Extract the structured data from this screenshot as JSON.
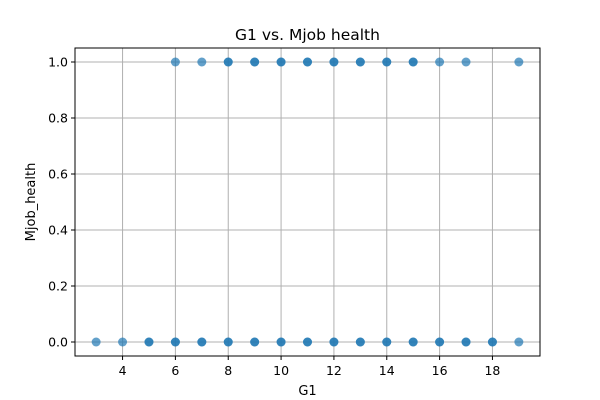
{
  "chart_data": {
    "type": "scatter",
    "title": "G1 vs. Mjob health",
    "xlabel": "G1",
    "ylabel": "Mjob_health",
    "xlim": [
      2.2,
      19.8
    ],
    "ylim": [
      -0.05,
      1.05
    ],
    "x_ticks": [
      4,
      6,
      8,
      10,
      12,
      14,
      16,
      18
    ],
    "y_ticks": [
      0.0,
      0.2,
      0.4,
      0.6,
      0.8,
      1.0
    ],
    "x_tick_labels": [
      "4",
      "6",
      "8",
      "10",
      "12",
      "14",
      "16",
      "18"
    ],
    "y_tick_labels": [
      "0.0",
      "0.2",
      "0.4",
      "0.6",
      "0.8",
      "1.0"
    ],
    "grid": true,
    "marker_color": "#1f77b4",
    "marker_alpha": 0.7,
    "points": [
      {
        "x": 3,
        "y": 0
      },
      {
        "x": 4,
        "y": 0
      },
      {
        "x": 5,
        "y": 0
      },
      {
        "x": 5,
        "y": 0
      },
      {
        "x": 6,
        "y": 0
      },
      {
        "x": 6,
        "y": 0
      },
      {
        "x": 6,
        "y": 1
      },
      {
        "x": 7,
        "y": 0
      },
      {
        "x": 7,
        "y": 0
      },
      {
        "x": 7,
        "y": 1
      },
      {
        "x": 8,
        "y": 0
      },
      {
        "x": 8,
        "y": 0
      },
      {
        "x": 8,
        "y": 1
      },
      {
        "x": 8,
        "y": 1
      },
      {
        "x": 9,
        "y": 0
      },
      {
        "x": 9,
        "y": 0
      },
      {
        "x": 9,
        "y": 1
      },
      {
        "x": 9,
        "y": 1
      },
      {
        "x": 10,
        "y": 0
      },
      {
        "x": 10,
        "y": 0
      },
      {
        "x": 10,
        "y": 1
      },
      {
        "x": 10,
        "y": 1
      },
      {
        "x": 11,
        "y": 0
      },
      {
        "x": 11,
        "y": 0
      },
      {
        "x": 11,
        "y": 1
      },
      {
        "x": 11,
        "y": 1
      },
      {
        "x": 12,
        "y": 0
      },
      {
        "x": 12,
        "y": 0
      },
      {
        "x": 12,
        "y": 1
      },
      {
        "x": 12,
        "y": 1
      },
      {
        "x": 13,
        "y": 0
      },
      {
        "x": 13,
        "y": 0
      },
      {
        "x": 13,
        "y": 1
      },
      {
        "x": 13,
        "y": 1
      },
      {
        "x": 14,
        "y": 0
      },
      {
        "x": 14,
        "y": 0
      },
      {
        "x": 14,
        "y": 1
      },
      {
        "x": 14,
        "y": 1
      },
      {
        "x": 15,
        "y": 0
      },
      {
        "x": 15,
        "y": 0
      },
      {
        "x": 15,
        "y": 1
      },
      {
        "x": 15,
        "y": 1
      },
      {
        "x": 16,
        "y": 0
      },
      {
        "x": 16,
        "y": 0
      },
      {
        "x": 16,
        "y": 1
      },
      {
        "x": 17,
        "y": 0
      },
      {
        "x": 17,
        "y": 0
      },
      {
        "x": 17,
        "y": 1
      },
      {
        "x": 18,
        "y": 0
      },
      {
        "x": 18,
        "y": 0
      },
      {
        "x": 19,
        "y": 0
      },
      {
        "x": 19,
        "y": 1
      }
    ]
  }
}
